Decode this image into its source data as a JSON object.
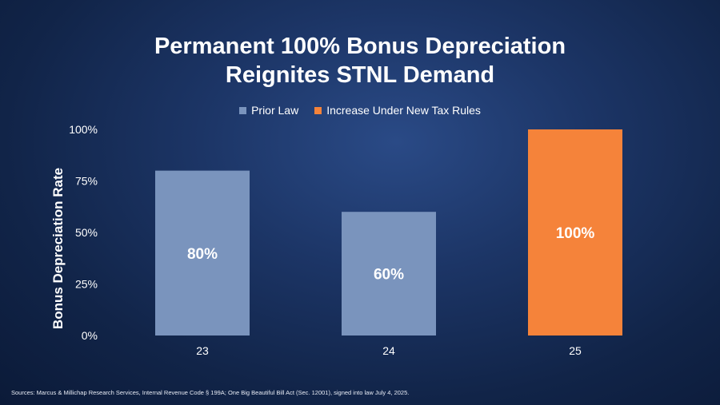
{
  "title_line1": "Permanent 100% Bonus Depreciation",
  "title_line2": "Reignites STNL Demand",
  "footnote": "Sources: Marcus & Millichap Research Services, Internal Revenue Code § 199A; One Big Beautiful Bill Act (Sec. 12001), signed into law July 4, 2025.",
  "legend": [
    {
      "label": "Prior Law",
      "color": "#7a94bd"
    },
    {
      "label": "Increase Under New Tax Rules",
      "color": "#f5833a"
    }
  ],
  "chart_data": {
    "type": "bar",
    "title": "Permanent 100% Bonus Depreciation Reignites STNL Demand",
    "xlabel": "",
    "ylabel": "Bonus Depreciation Rate",
    "categories": [
      "23",
      "24",
      "25"
    ],
    "series": [
      {
        "name": "Prior Law",
        "values": [
          80,
          60,
          null
        ],
        "color": "#7a94bd"
      },
      {
        "name": "Increase Under New Tax Rules",
        "values": [
          null,
          null,
          100
        ],
        "color": "#f5833a"
      }
    ],
    "data_labels": [
      "80%",
      "60%",
      "100%"
    ],
    "yticks": [
      "0%",
      "25%",
      "50%",
      "75%",
      "100%"
    ],
    "ylim": [
      0,
      100
    ],
    "grid": false,
    "legend_position": "top-center"
  }
}
